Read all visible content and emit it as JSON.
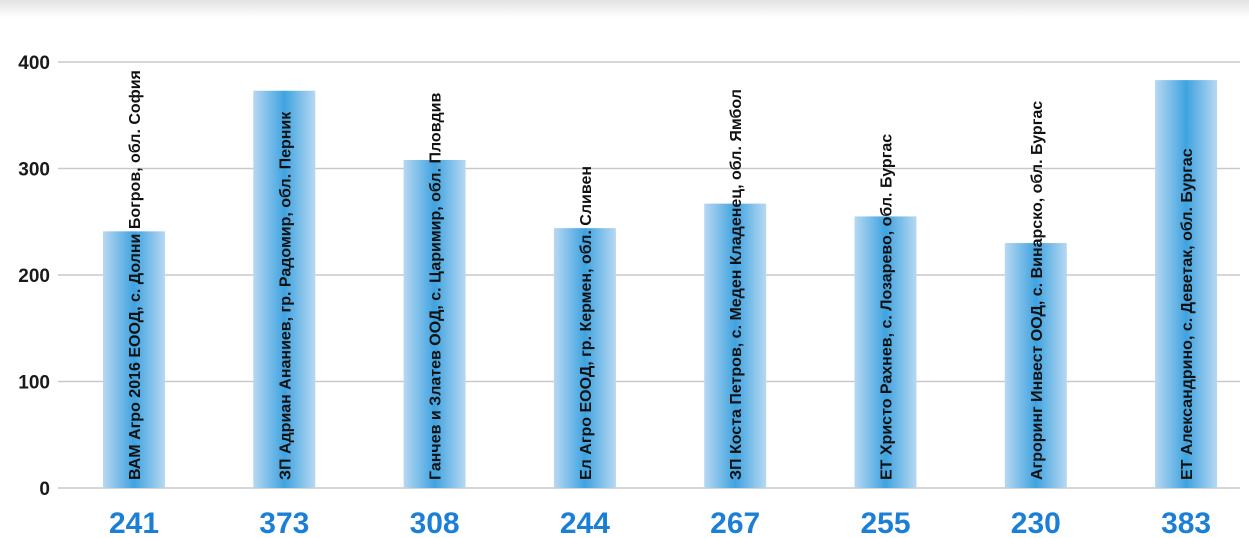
{
  "chart_data": {
    "type": "bar",
    "categories": [
      "ВАМ Агро 2016 ЕООД, с. Долни Богров, обл. София",
      "ЗП Адриан Ананиев, гр. Радомир, обл. Перник",
      "Ганчев и Златев ООД, с. Царимир, обл. Пловдив",
      "Ел Агро ЕООД, гр. Кермен, обл. Сливен",
      "ЗП Коста Петров, с. Меден Кладенец, обл. Ямбол",
      "ЕТ Христо Рахнев, с. Лозарево, обл. Бургас",
      "Агроринг Инвест ООД, с. Винарско, обл. Бургас",
      "ЕТ Александрино, с. Деветак, обл. Бургас"
    ],
    "values": [
      241,
      373,
      308,
      244,
      267,
      255,
      230,
      383
    ],
    "value_labels": [
      "241",
      "373",
      "308",
      "244",
      "267",
      "255",
      "230",
      "383"
    ],
    "yticks": [
      "0",
      "100",
      "200",
      "300",
      "400"
    ],
    "ylim": [
      0,
      430
    ],
    "grid": true,
    "colors": {
      "bar_edge": "#b7d8f2",
      "bar_center": "#3fa3e0",
      "value_text": "#1c7fd6",
      "grid": "#c9c9c9",
      "top_band": "#e3e3e3"
    }
  }
}
